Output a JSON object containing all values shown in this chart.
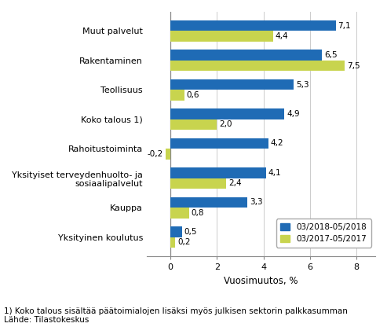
{
  "categories": [
    "Yksityinen koulutus",
    "Kauppa",
    "Yksityiset terveydenhuolto- ja\nsosiaalipalvelut",
    "Rahoitustoiminta",
    "Koko talous 1)",
    "Teollisuus",
    "Rakentaminen",
    "Muut palvelut"
  ],
  "series1_label": "03/2018-05/2018",
  "series2_label": "03/2017-05/2017",
  "series1_values": [
    0.5,
    3.3,
    4.1,
    4.2,
    4.9,
    5.3,
    6.5,
    7.1
  ],
  "series2_values": [
    0.2,
    0.8,
    2.4,
    -0.2,
    2.0,
    0.6,
    7.5,
    4.4
  ],
  "series1_color": "#1F6BB5",
  "series2_color": "#C8D44E",
  "xlabel": "Vuosimuutos, %",
  "xlim": [
    -1.0,
    8.8
  ],
  "xticks": [
    0,
    2,
    4,
    6,
    8
  ],
  "footnote1": "1) Koko talous sisältää päätoimialojen lisäksi myös julkisen sektorin palkkasumman",
  "footnote2": "Lähde: Tilastokeskus",
  "bar_height": 0.36,
  "fontsize_ticks": 8.0,
  "fontsize_xlabel": 8.5,
  "fontsize_annot": 7.5,
  "fontsize_footnote": 7.5,
  "background_color": "#ffffff"
}
